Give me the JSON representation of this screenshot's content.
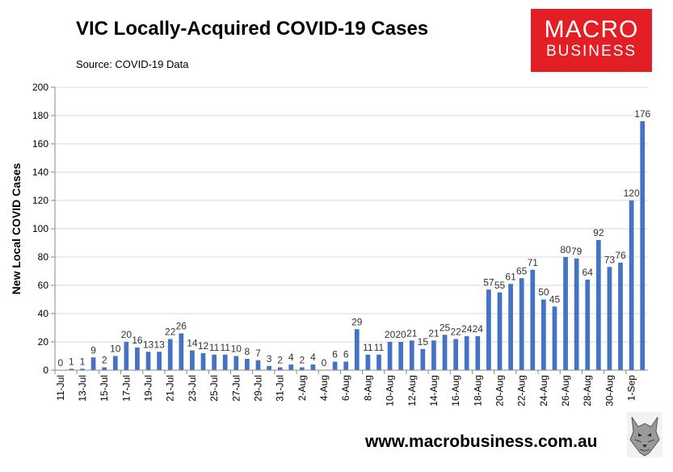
{
  "title": "VIC Locally-Acquired COVID-19 Cases",
  "source": "Source: COVID-19 Data",
  "logo": {
    "line1": "MACRO",
    "line2": "BUSINESS"
  },
  "footer_url": "www.macrobusiness.com.au",
  "colors": {
    "bar": "#4472c4",
    "logo_bg": "#e31e24"
  },
  "chart_data": {
    "type": "bar",
    "title": "VIC Locally-Acquired COVID-19 Cases",
    "xlabel": "",
    "ylabel": "New Local COVID Cases",
    "ylim": [
      0,
      200
    ],
    "yticks": [
      0,
      20,
      40,
      60,
      80,
      100,
      120,
      140,
      160,
      180,
      200
    ],
    "grid": true,
    "categories": [
      "11-Jul",
      "12-Jul",
      "13-Jul",
      "14-Jul",
      "15-Jul",
      "16-Jul",
      "17-Jul",
      "18-Jul",
      "19-Jul",
      "20-Jul",
      "21-Jul",
      "22-Jul",
      "23-Jul",
      "24-Jul",
      "25-Jul",
      "26-Jul",
      "27-Jul",
      "28-Jul",
      "29-Jul",
      "30-Jul",
      "31-Jul",
      "1-Aug",
      "2-Aug",
      "3-Aug",
      "4-Aug",
      "5-Aug",
      "6-Aug",
      "7-Aug",
      "8-Aug",
      "9-Aug",
      "10-Aug",
      "11-Aug",
      "12-Aug",
      "13-Aug",
      "14-Aug",
      "15-Aug",
      "16-Aug",
      "17-Aug",
      "18-Aug",
      "19-Aug",
      "20-Aug",
      "21-Aug",
      "22-Aug",
      "23-Aug",
      "24-Aug",
      "25-Aug",
      "26-Aug",
      "27-Aug",
      "28-Aug",
      "29-Aug",
      "30-Aug",
      "31-Aug",
      "1-Sep",
      "2-Sep"
    ],
    "tick_labels": [
      "11-Jul",
      "13-Jul",
      "15-Jul",
      "17-Jul",
      "19-Jul",
      "21-Jul",
      "23-Jul",
      "25-Jul",
      "27-Jul",
      "29-Jul",
      "31-Jul",
      "2-Aug",
      "4-Aug",
      "6-Aug",
      "8-Aug",
      "10-Aug",
      "12-Aug",
      "14-Aug",
      "16-Aug",
      "18-Aug",
      "20-Aug",
      "22-Aug",
      "24-Aug",
      "26-Aug",
      "28-Aug",
      "30-Aug",
      "1-Sep"
    ],
    "values": [
      0,
      1,
      1,
      9,
      2,
      10,
      20,
      16,
      13,
      13,
      22,
      26,
      14,
      12,
      11,
      11,
      10,
      8,
      7,
      3,
      2,
      4,
      2,
      4,
      0,
      6,
      6,
      29,
      11,
      11,
      20,
      20,
      21,
      15,
      21,
      25,
      22,
      24,
      24,
      57,
      55,
      61,
      65,
      71,
      50,
      45,
      80,
      79,
      64,
      92,
      73,
      76,
      120,
      176
    ]
  }
}
